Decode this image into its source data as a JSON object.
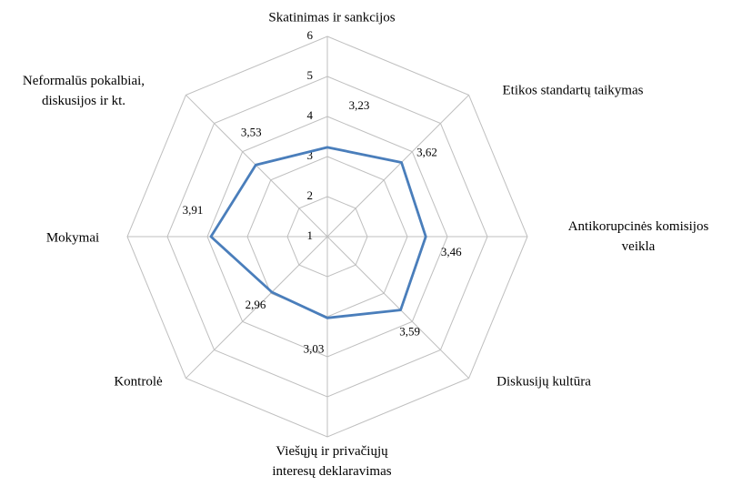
{
  "chart_data": {
    "type": "radar",
    "categories": [
      "Skatinimas ir sankcijos",
      "Etikos standartų taikymas",
      "Antikorupcinės komisijos\nveikla",
      "Diskusijų kultūra",
      "Viešųjų ir privačiųjų\ninteresų deklaravimas",
      "Kontrolė",
      "Mokymai",
      "Neformalūs pokalbiai,\ndiskusijos ir kt."
    ],
    "values": [
      3.23,
      3.62,
      3.46,
      3.59,
      3.03,
      2.96,
      3.91,
      3.53
    ],
    "value_labels": [
      "3,23",
      "3,62",
      "3,46",
      "3,59",
      "3,03",
      "2,96",
      "3,91",
      "3,53"
    ],
    "color": "#4a7ebb",
    "rlim": [
      1,
      6
    ],
    "rticks": [
      1,
      2,
      3,
      4,
      5,
      6
    ],
    "grid": true
  }
}
